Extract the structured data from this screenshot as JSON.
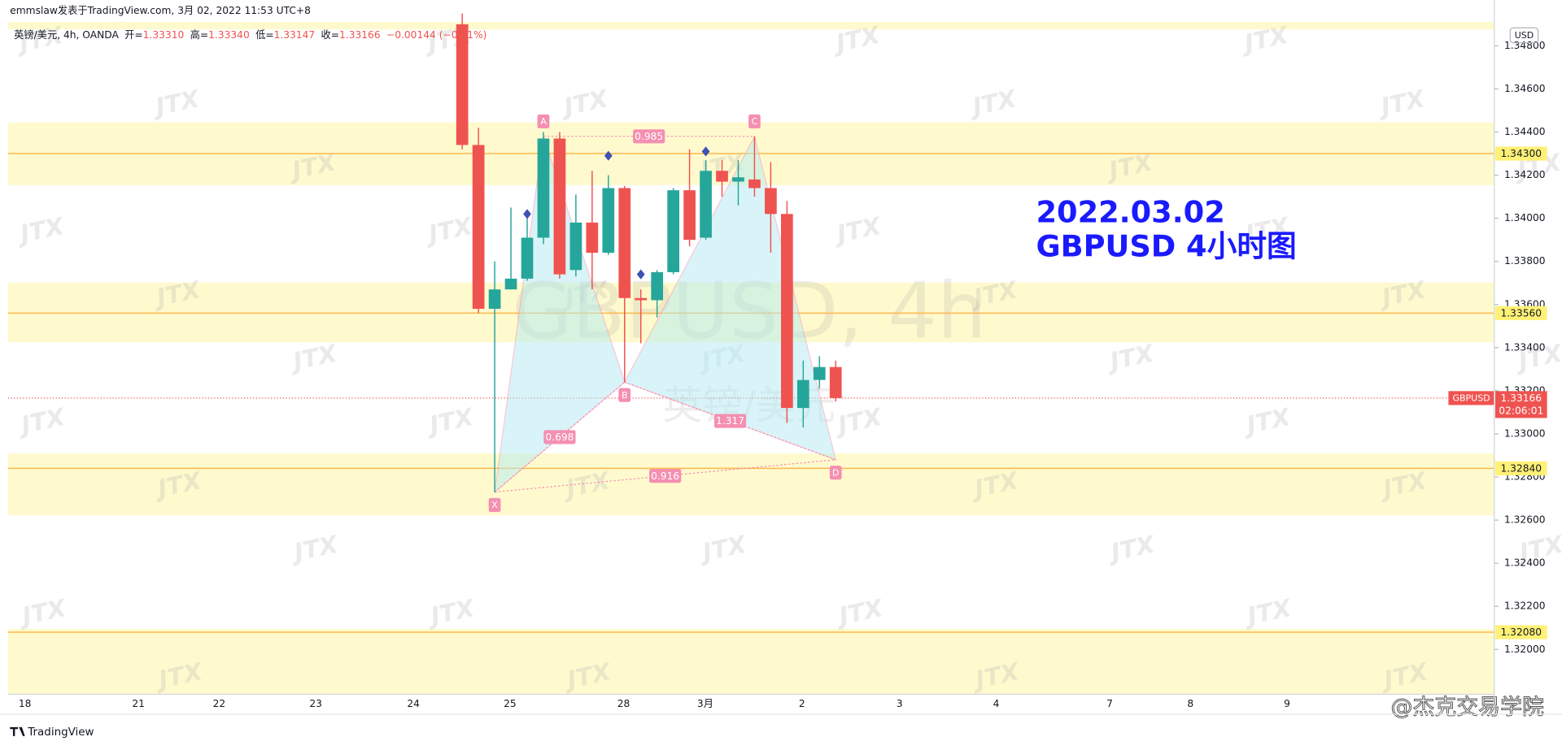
{
  "chart_data": {
    "type": "candlestick",
    "byline": "emmslaw发表于TradingView.com, 3月 02, 2022 11:53 UTC+8",
    "legend": {
      "symbol": "英镑/美元, 4h, OANDA",
      "items": [
        {
          "name": "开=",
          "value": "1.33310"
        },
        {
          "name": "高=",
          "value": "1.33340"
        },
        {
          "name": "低=",
          "value": "1.33147"
        },
        {
          "name": "收=",
          "value": "1.33166"
        }
      ],
      "change": "−0.00144 (−0.11%)"
    },
    "watermark": "GBPUSD, 4h",
    "watermark_sub": "英镑/美元",
    "annotation": [
      "2022.03.02",
      "GBPUSD 4小时图"
    ],
    "brand_watermark": "JTX",
    "credit": "@杰克交易学院",
    "footer": "TradingView",
    "currency": "USD",
    "x_labels": [
      "18",
      "21",
      "22",
      "23",
      "24",
      "25",
      "28",
      "3月",
      "2",
      "3",
      "4",
      "7",
      "8",
      "9"
    ],
    "open": [
      1.349,
      1.3434,
      1.3358,
      1.3367,
      1.3372,
      1.3391,
      1.3437,
      1.3376,
      1.3398,
      1.3384,
      1.3414,
      1.3363,
      1.3362,
      1.3375,
      1.3413,
      1.3391,
      1.3422,
      1.3417,
      1.3418,
      1.3414,
      1.3402,
      1.3312,
      1.3325,
      1.3331
    ],
    "high": [
      1.3495,
      1.3442,
      1.338,
      1.3405,
      1.3401,
      1.344,
      1.344,
      1.3411,
      1.3422,
      1.342,
      1.3415,
      1.3367,
      1.3376,
      1.3414,
      1.3432,
      1.3427,
      1.3427,
      1.3427,
      1.3438,
      1.3426,
      1.3408,
      1.3334,
      1.3336,
      1.3334
    ],
    "low": [
      1.3432,
      1.3356,
      1.3273,
      1.3367,
      1.3371,
      1.3388,
      1.3372,
      1.3373,
      1.3367,
      1.3383,
      1.3324,
      1.3342,
      1.3354,
      1.3374,
      1.3387,
      1.339,
      1.341,
      1.3406,
      1.341,
      1.3384,
      1.3305,
      1.3303,
      1.3321,
      1.3315
    ],
    "close": [
      1.3434,
      1.3358,
      1.3367,
      1.3372,
      1.3391,
      1.3437,
      1.3374,
      1.3398,
      1.3384,
      1.3414,
      1.3363,
      1.3362,
      1.3375,
      1.3413,
      1.339,
      1.3422,
      1.3417,
      1.3419,
      1.3414,
      1.3402,
      1.3312,
      1.3325,
      1.3331,
      1.33166
    ],
    "up_color": "#26a69a",
    "down_color": "#ef5350",
    "ylim": [
      1.31792,
      1.34911
    ],
    "yticks": [
      {
        "value": 1.32,
        "label": "1.32000"
      },
      {
        "value": 1.322,
        "label": "1.32200"
      },
      {
        "value": 1.324,
        "label": "1.32400"
      },
      {
        "value": 1.326,
        "label": "1.32600"
      },
      {
        "value": 1.328,
        "label": "1.32800"
      },
      {
        "value": 1.33,
        "label": "1.33000"
      },
      {
        "value": 1.332,
        "label": "1.33200"
      },
      {
        "value": 1.334,
        "label": "1.33400"
      },
      {
        "value": 1.336,
        "label": "1.33600"
      },
      {
        "value": 1.338,
        "label": "1.33800"
      },
      {
        "value": 1.34,
        "label": "1.34000"
      },
      {
        "value": 1.342,
        "label": "1.34200"
      },
      {
        "value": 1.344,
        "label": "1.34400"
      },
      {
        "value": 1.346,
        "label": "1.34600"
      },
      {
        "value": 1.348,
        "label": "1.34800"
      }
    ],
    "zones": [
      [
        1.34876,
        1.34911
      ],
      [
        1.34154,
        1.34445
      ],
      [
        1.33425,
        1.33702
      ],
      [
        1.32622,
        1.32909
      ],
      [
        1.31792,
        1.32096
      ]
    ],
    "zone_color": "#fff59d",
    "levels": [
      {
        "value": 1.343,
        "label": "1.34300"
      },
      {
        "value": 1.3356,
        "label": "1.33560"
      },
      {
        "value": 1.3284,
        "label": "1.32840"
      },
      {
        "value": 1.3208,
        "label": "1.32080"
      }
    ],
    "level_color": "#ffb74d",
    "pattern": {
      "color": "#f48fb1",
      "points": [
        {
          "label": "X",
          "index": 2,
          "value": 1.3273
        },
        {
          "label": "A",
          "index": 5,
          "value": 1.3438
        },
        {
          "label": "B",
          "index": 10,
          "value": 1.3324
        },
        {
          "label": "C",
          "index": 18,
          "value": 1.3438
        },
        {
          "label": "D",
          "index": 23,
          "value": 1.3288
        }
      ],
      "ratios": [
        0.698,
        0.985,
        1.317,
        0.916
      ]
    },
    "markers": {
      "color": "#3f51b5",
      "index": [
        4,
        9,
        11,
        15
      ],
      "values": [
        1.3402,
        1.3429,
        1.3374,
        1.3431
      ]
    },
    "last": {
      "name": "GBPUSD",
      "value": 1.33166,
      "countdown": "02:06:01"
    }
  }
}
